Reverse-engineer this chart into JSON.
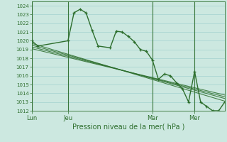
{
  "background_color": "#cce8e0",
  "grid_color": "#99cccc",
  "line_color": "#2d6e2d",
  "title": "Pression niveau de la mer( hPa )",
  "ylim": [
    1012,
    1024.5
  ],
  "yticks": [
    1012,
    1013,
    1014,
    1015,
    1016,
    1017,
    1018,
    1019,
    1020,
    1021,
    1022,
    1023,
    1024
  ],
  "day_labels": [
    "Lun",
    "Jeu",
    "Mar",
    "Mer"
  ],
  "day_positions": [
    0,
    6,
    20,
    27
  ],
  "xlim": [
    0,
    32
  ],
  "series": [
    {
      "x": [
        0,
        1,
        6,
        7,
        8,
        9,
        10,
        11,
        13,
        14,
        15,
        16,
        17,
        18,
        19,
        20,
        21,
        22,
        23,
        24,
        25,
        26,
        27,
        28,
        29,
        30,
        31,
        32
      ],
      "y": [
        1020.0,
        1019.4,
        1020.0,
        1023.2,
        1023.6,
        1023.2,
        1021.2,
        1019.4,
        1019.2,
        1021.1,
        1021.0,
        1020.5,
        1019.9,
        1019.0,
        1018.8,
        1017.8,
        1015.6,
        1016.2,
        1016.0,
        1015.2,
        1014.5,
        1013.0,
        1016.5,
        1013.0,
        1012.5,
        1012.0,
        1012.0,
        1013.0
      ],
      "marker": "+"
    },
    {
      "x": [
        0,
        32
      ],
      "y": [
        1019.7,
        1013.1
      ],
      "marker": null
    },
    {
      "x": [
        0,
        32
      ],
      "y": [
        1019.5,
        1013.4
      ],
      "marker": null
    },
    {
      "x": [
        0,
        32
      ],
      "y": [
        1019.3,
        1013.6
      ],
      "marker": null
    },
    {
      "x": [
        0,
        32
      ],
      "y": [
        1019.1,
        1013.8
      ],
      "marker": null
    }
  ]
}
